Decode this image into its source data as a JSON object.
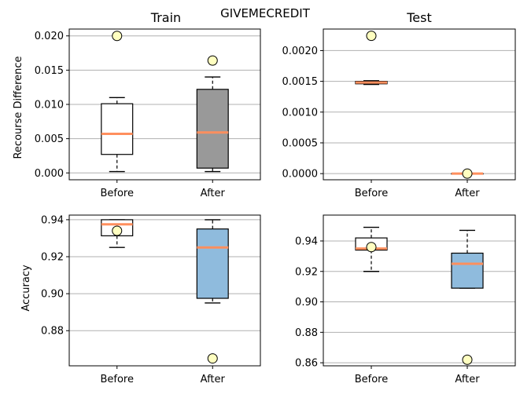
{
  "figure_title": "GIVEMECREDIT",
  "chart_data": [
    {
      "type": "box",
      "title": "Train",
      "xlabel": "",
      "ylabel": "Recourse Difference",
      "categories": [
        "Before",
        "After"
      ],
      "ylim": [
        -0.001,
        0.021
      ],
      "yticks": [
        0.0,
        0.005,
        0.01,
        0.015,
        0.02
      ],
      "ytick_labels": [
        "0.000",
        "0.005",
        "0.010",
        "0.015",
        "0.020"
      ],
      "grid": "y",
      "boxes": [
        {
          "name": "Before",
          "whisker_low": 0.0002,
          "q1": 0.0027,
          "median": 0.0057,
          "q3": 0.0101,
          "whisker_high": 0.011,
          "marker": 0.02,
          "fill": "#ffffff"
        },
        {
          "name": "After",
          "whisker_low": 0.0002,
          "q1": 0.0007,
          "median": 0.0059,
          "q3": 0.0122,
          "whisker_high": 0.014,
          "marker": 0.0164,
          "fill": "#999999"
        }
      ]
    },
    {
      "type": "box",
      "title": "Test",
      "xlabel": "",
      "ylabel": "",
      "categories": [
        "Before",
        "After"
      ],
      "ylim": [
        -0.0001,
        0.00235
      ],
      "yticks": [
        0.0,
        0.0005,
        0.001,
        0.0015,
        0.002
      ],
      "ytick_labels": [
        "0.0000",
        "0.0005",
        "0.0010",
        "0.0015",
        "0.0020"
      ],
      "grid": "y",
      "boxes": [
        {
          "name": "Before",
          "whisker_low": 0.00145,
          "q1": 0.00146,
          "median": 0.00148,
          "q3": 0.0015,
          "whisker_high": 0.00151,
          "marker": 0.00224,
          "fill": "#ffffff"
        },
        {
          "name": "After",
          "whisker_low": 0.0,
          "q1": 0.0,
          "median": 0.0,
          "q3": 0.0,
          "whisker_high": 0.0,
          "marker": 0.0,
          "fill": "#7fb2dc"
        }
      ]
    },
    {
      "type": "box",
      "title": "",
      "xlabel": "",
      "ylabel": "Accuracy",
      "categories": [
        "Before",
        "After"
      ],
      "ylim": [
        0.861,
        0.9425
      ],
      "yticks": [
        0.88,
        0.9,
        0.92,
        0.94
      ],
      "ytick_labels": [
        "0.88",
        "0.90",
        "0.92",
        "0.94"
      ],
      "grid": "y",
      "boxes": [
        {
          "name": "Before",
          "whisker_low": 0.925,
          "q1": 0.9313,
          "median": 0.9375,
          "q3": 0.94,
          "whisker_high": 0.94,
          "marker": 0.934,
          "fill": "#ffffff"
        },
        {
          "name": "After",
          "whisker_low": 0.895,
          "q1": 0.8975,
          "median": 0.925,
          "q3": 0.935,
          "whisker_high": 0.94,
          "marker": 0.865,
          "fill": "#8fbbdd"
        }
      ]
    },
    {
      "type": "box",
      "title": "",
      "xlabel": "",
      "ylabel": "",
      "categories": [
        "Before",
        "After"
      ],
      "ylim": [
        0.858,
        0.957
      ],
      "yticks": [
        0.86,
        0.88,
        0.9,
        0.92,
        0.94
      ],
      "ytick_labels": [
        "0.86",
        "0.88",
        "0.90",
        "0.92",
        "0.94"
      ],
      "grid": "y",
      "boxes": [
        {
          "name": "Before",
          "whisker_low": 0.92,
          "q1": 0.934,
          "median": 0.935,
          "q3": 0.942,
          "whisker_high": 0.949,
          "marker": 0.936,
          "fill": "#ffffff"
        },
        {
          "name": "After",
          "whisker_low": 0.909,
          "q1": 0.909,
          "median": 0.925,
          "q3": 0.932,
          "whisker_high": 0.947,
          "marker": 0.862,
          "fill": "#8fbbdd"
        }
      ]
    }
  ],
  "colors": {
    "median": "#ff8f5e",
    "marker_fill": "#ffffc0",
    "grid": "#b0b0b0",
    "frame": "#000000"
  }
}
